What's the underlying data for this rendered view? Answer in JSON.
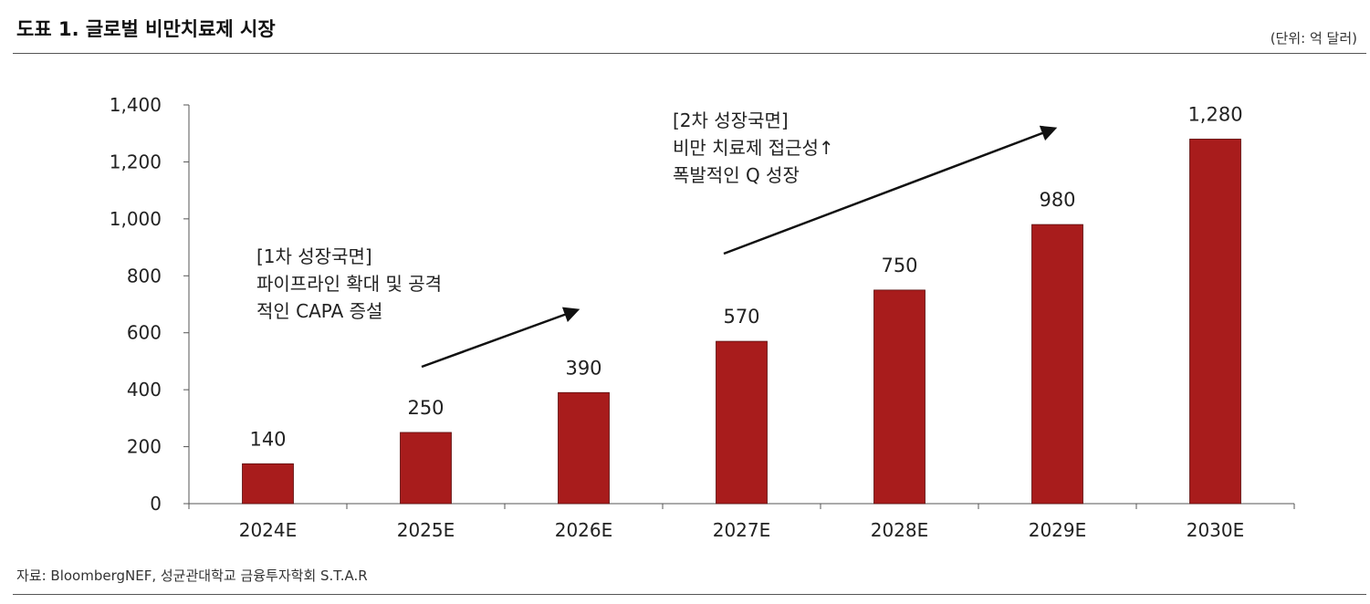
{
  "header": {
    "title": "도표 1. 글로벌 비만치료제 시장",
    "unit": "(단위: 억 달러)"
  },
  "footer": {
    "source": "자료: BloombergNEF, 성균관대학교 금융투자학회 S.T.A.R"
  },
  "annotations": {
    "phase1": {
      "line1": "[1차 성장국면]",
      "line2": "파이프라인 확대 및 공격",
      "line3": "적인 CAPA 증설"
    },
    "phase2": {
      "line1": "[2차 성장국면]",
      "line2": "비만 치료제 접근성↑",
      "line3": "폭발적인 Q 성장"
    }
  },
  "colors": {
    "bar": "#A81C1C",
    "axis": "#555555",
    "text": "#222222"
  },
  "chart_data": {
    "type": "bar",
    "categories": [
      "2024E",
      "2025E",
      "2026E",
      "2027E",
      "2028E",
      "2029E",
      "2030E"
    ],
    "values": [
      140,
      250,
      390,
      570,
      750,
      980,
      1280
    ],
    "data_labels": [
      "140",
      "250",
      "390",
      "570",
      "750",
      "980",
      "1,280"
    ],
    "yticks": [
      0,
      200,
      400,
      600,
      800,
      1000,
      1200,
      1400
    ],
    "ytick_labels": [
      "0",
      "200",
      "400",
      "600",
      "800",
      "1,000",
      "1,200",
      "1,400"
    ],
    "ylim": [
      0,
      1400
    ],
    "grid": false,
    "legend": "none"
  }
}
